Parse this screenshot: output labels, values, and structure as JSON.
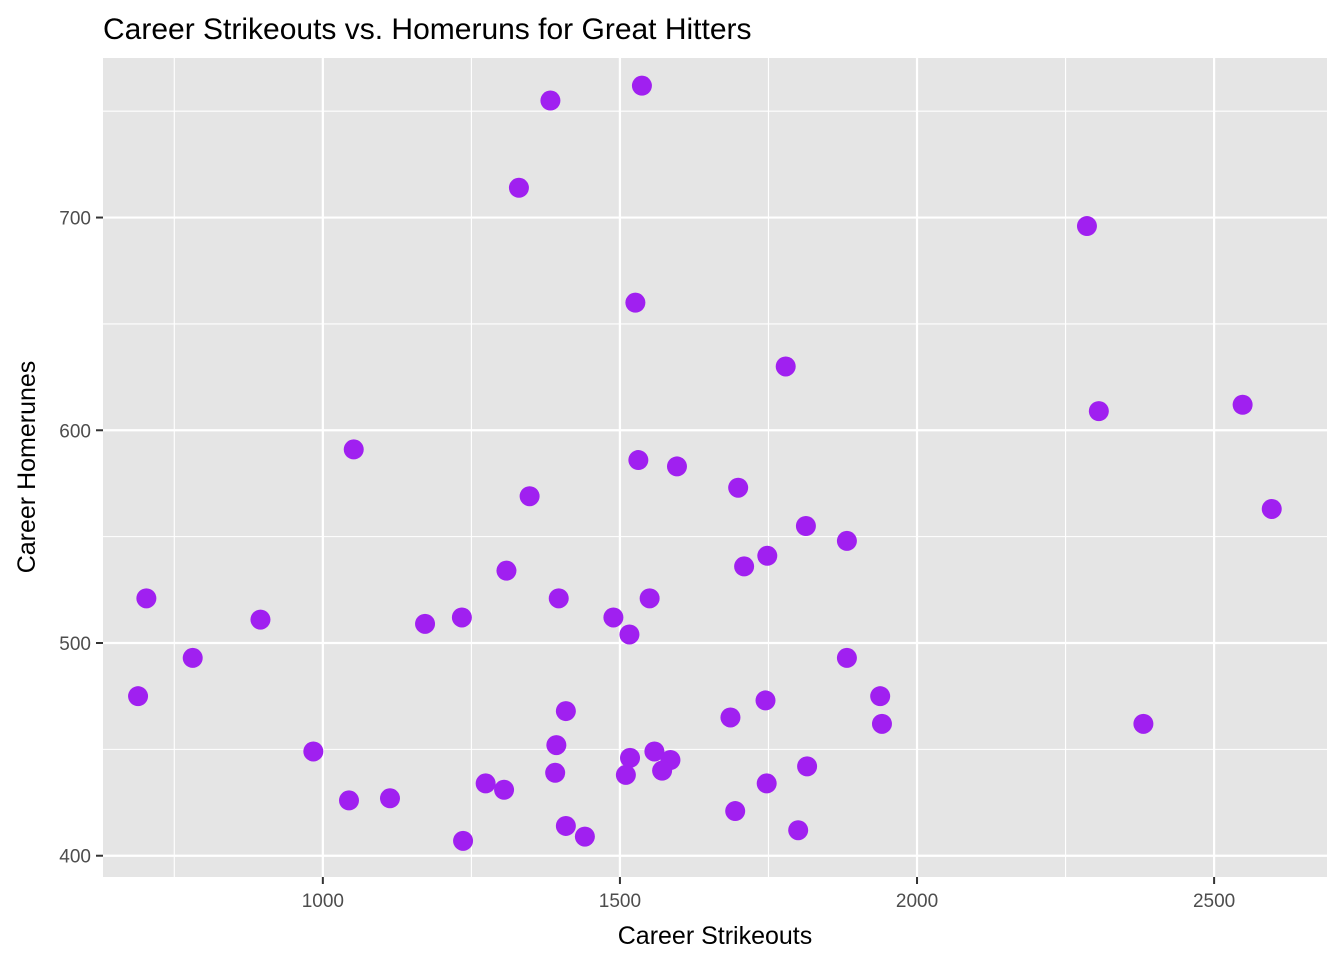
{
  "chart_data": {
    "type": "scatter",
    "title": "Career Strikeouts vs. Homeruns for Great Hitters",
    "xlabel": "Career Strikeouts",
    "ylabel": "Career Homerunes",
    "xlim": [
      630,
      2690
    ],
    "ylim": [
      390,
      775
    ],
    "x_ticks": [
      1000,
      1500,
      2000,
      2500
    ],
    "y_ticks": [
      400,
      500,
      600,
      700
    ],
    "x_tick_labels": [
      "1000",
      "1500",
      "2000",
      "2500"
    ],
    "y_tick_labels": [
      "400",
      "500",
      "600",
      "700"
    ],
    "x_minor": [
      750,
      1250,
      1750,
      2250
    ],
    "y_minor": [
      450,
      550,
      650,
      750
    ],
    "grid": true,
    "legend": "none",
    "point_color": "#a020f0",
    "panel_color": "#e5e5e5",
    "x": [
      1383,
      1537,
      1330,
      2286,
      1526,
      1779,
      2306,
      2548,
      1052,
      1531,
      1596,
      1699,
      2597,
      1348,
      1813,
      1882,
      1709,
      1748,
      703,
      1309,
      1397,
      1550,
      895,
      1489,
      1234,
      1172,
      1516,
      781,
      1882,
      689,
      1745,
      1938,
      1409,
      1941,
      2381,
      1686,
      1393,
      984,
      1558,
      1517,
      1585,
      1815,
      1571,
      1510,
      1391,
      1274,
      1305,
      1747,
      1044,
      1113,
      1694,
      1409,
      1800,
      1441,
      1236
    ],
    "y": [
      755,
      762,
      714,
      696,
      660,
      630,
      609,
      612,
      591,
      586,
      583,
      573,
      563,
      569,
      555,
      548,
      536,
      541,
      521,
      534,
      521,
      521,
      511,
      512,
      512,
      509,
      504,
      493,
      493,
      475,
      473,
      475,
      468,
      462,
      462,
      465,
      452,
      449,
      449,
      446,
      445,
      442,
      440,
      438,
      439,
      434,
      431,
      434,
      426,
      427,
      421,
      414,
      412,
      409,
      407
    ]
  }
}
